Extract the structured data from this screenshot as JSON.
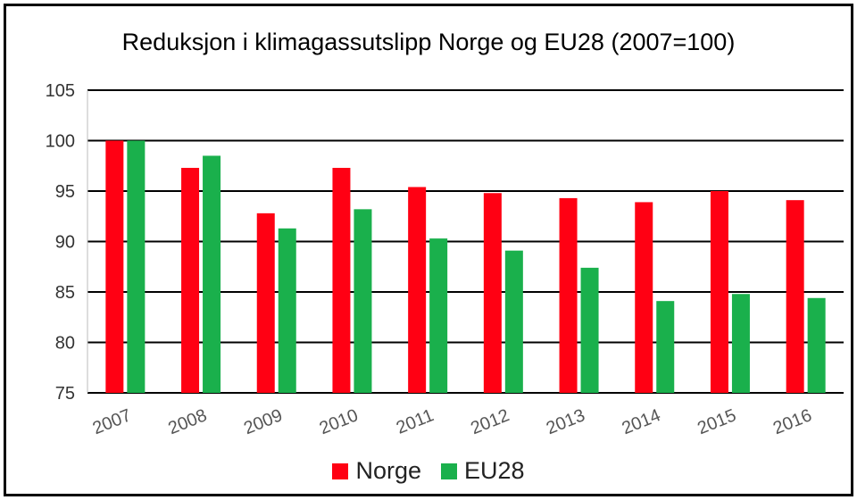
{
  "chart_data": {
    "type": "bar",
    "title": "Reduksjon i klimagassutslipp Norge og EU28  (2007=100)",
    "categories": [
      "2007",
      "2008",
      "2009",
      "2010",
      "2011",
      "2012",
      "2013",
      "2014",
      "2015",
      "2016"
    ],
    "series": [
      {
        "name": "Norge",
        "color": "#ff0013",
        "values": [
          100,
          97.3,
          92.8,
          97.3,
          95.4,
          94.8,
          94.3,
          93.9,
          95.0,
          94.1
        ]
      },
      {
        "name": "EU28",
        "color": "#1ab04c",
        "values": [
          100,
          98.5,
          91.3,
          93.2,
          90.3,
          89.1,
          87.4,
          84.1,
          84.8,
          84.4
        ]
      }
    ],
    "ylim": [
      75,
      105
    ],
    "yticks": [
      "75",
      "80",
      "85",
      "90",
      "95",
      "100",
      "105"
    ],
    "grid": true,
    "legend": "bottom",
    "xlabel": "",
    "ylabel": ""
  }
}
